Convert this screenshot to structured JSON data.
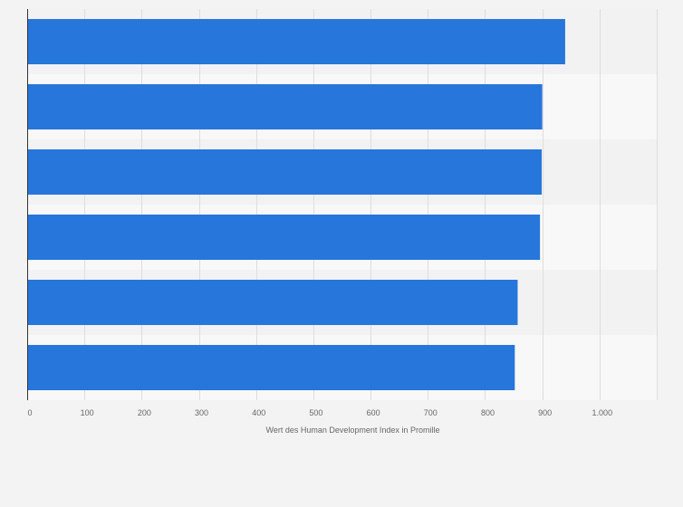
{
  "chart_data": {
    "type": "bar",
    "orientation": "horizontal",
    "title": "",
    "xlabel": "Wert des Human Development Index in Promille",
    "ylabel": "",
    "categories": [
      "",
      "",
      "",
      "",
      "",
      ""
    ],
    "values": [
      940,
      900,
      899,
      896,
      857,
      852
    ],
    "xlim": [
      0,
      1100
    ],
    "xticks": [
      {
        "value": 0,
        "label": "0"
      },
      {
        "value": 100,
        "label": "100"
      },
      {
        "value": 200,
        "label": "200"
      },
      {
        "value": 300,
        "label": "300"
      },
      {
        "value": 400,
        "label": "400"
      },
      {
        "value": 500,
        "label": "500"
      },
      {
        "value": 600,
        "label": "600"
      },
      {
        "value": 700,
        "label": "700"
      },
      {
        "value": 800,
        "label": "800"
      },
      {
        "value": 900,
        "label": "900"
      },
      {
        "value": 1000,
        "label": "1.000"
      }
    ],
    "grid": true,
    "legend": "none",
    "colors": {
      "bar": "#2776dc",
      "band_dark": "#f2f2f2",
      "band_light": "#f8f8f8",
      "grid": "#dddddd",
      "axis": "#333333",
      "text": "#666666"
    }
  }
}
